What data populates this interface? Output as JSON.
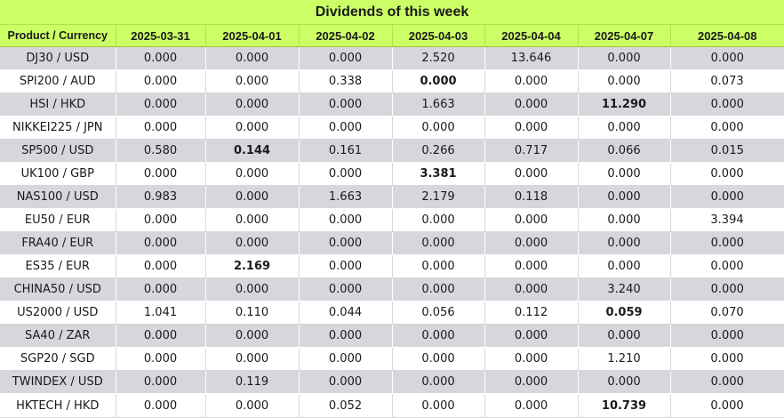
{
  "title": "Dividends of this week",
  "header": {
    "product_label": "Product / Currency",
    "dates": [
      "2025-03-31",
      "2025-04-01",
      "2025-04-02",
      "2025-04-03",
      "2025-04-04",
      "2025-04-07",
      "2025-04-08"
    ]
  },
  "rows": [
    {
      "product": "DJ30 / USD",
      "values": [
        "0.000",
        "0.000",
        "0.000",
        "2.520",
        "13.646",
        "0.000",
        "0.000"
      ],
      "bold": []
    },
    {
      "product": "SPI200 / AUD",
      "values": [
        "0.000",
        "0.000",
        "0.338",
        "0.000",
        "0.000",
        "0.000",
        "0.073"
      ],
      "bold": [
        3
      ]
    },
    {
      "product": "HSI / HKD",
      "values": [
        "0.000",
        "0.000",
        "0.000",
        "1.663",
        "0.000",
        "11.290",
        "0.000"
      ],
      "bold": [
        5
      ]
    },
    {
      "product": "NIKKEI225 / JPN",
      "values": [
        "0.000",
        "0.000",
        "0.000",
        "0.000",
        "0.000",
        "0.000",
        "0.000"
      ],
      "bold": []
    },
    {
      "product": "SP500 / USD",
      "values": [
        "0.580",
        "0.144",
        "0.161",
        "0.266",
        "0.717",
        "0.066",
        "0.015"
      ],
      "bold": [
        1
      ]
    },
    {
      "product": "UK100 / GBP",
      "values": [
        "0.000",
        "0.000",
        "0.000",
        "3.381",
        "0.000",
        "0.000",
        "0.000"
      ],
      "bold": [
        3
      ]
    },
    {
      "product": "NAS100 / USD",
      "values": [
        "0.983",
        "0.000",
        "1.663",
        "2.179",
        "0.118",
        "0.000",
        "0.000"
      ],
      "bold": []
    },
    {
      "product": "EU50 / EUR",
      "values": [
        "0.000",
        "0.000",
        "0.000",
        "0.000",
        "0.000",
        "0.000",
        "3.394"
      ],
      "bold": []
    },
    {
      "product": "FRA40 / EUR",
      "values": [
        "0.000",
        "0.000",
        "0.000",
        "0.000",
        "0.000",
        "0.000",
        "0.000"
      ],
      "bold": []
    },
    {
      "product": "ES35 / EUR",
      "values": [
        "0.000",
        "2.169",
        "0.000",
        "0.000",
        "0.000",
        "0.000",
        "0.000"
      ],
      "bold": [
        1
      ]
    },
    {
      "product": "CHINA50 / USD",
      "values": [
        "0.000",
        "0.000",
        "0.000",
        "0.000",
        "0.000",
        "3.240",
        "0.000"
      ],
      "bold": []
    },
    {
      "product": "US2000 / USD",
      "values": [
        "1.041",
        "0.110",
        "0.044",
        "0.056",
        "0.112",
        "0.059",
        "0.070"
      ],
      "bold": [
        5
      ]
    },
    {
      "product": "SA40 / ZAR",
      "values": [
        "0.000",
        "0.000",
        "0.000",
        "0.000",
        "0.000",
        "0.000",
        "0.000"
      ],
      "bold": []
    },
    {
      "product": "SGP20 / SGD",
      "values": [
        "0.000",
        "0.000",
        "0.000",
        "0.000",
        "0.000",
        "1.210",
        "0.000"
      ],
      "bold": []
    },
    {
      "product": "TWINDEX / USD",
      "values": [
        "0.000",
        "0.119",
        "0.000",
        "0.000",
        "0.000",
        "0.000",
        "0.000"
      ],
      "bold": []
    },
    {
      "product": "HKTECH / HKD",
      "values": [
        "0.000",
        "0.000",
        "0.052",
        "0.000",
        "0.000",
        "10.739",
        "0.000"
      ],
      "bold": [
        5
      ]
    }
  ],
  "colors": {
    "header_bg": "#ccff66",
    "row_alt_bg": "#d6d6dc",
    "row_bg": "#ffffff",
    "text": "#1a1a1a"
  }
}
